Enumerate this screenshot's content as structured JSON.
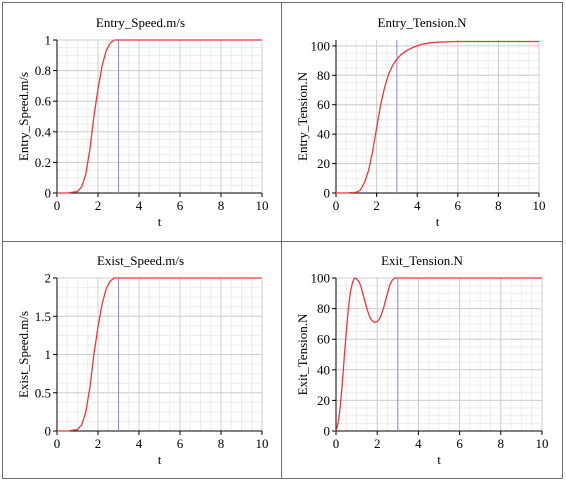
{
  "chart_data": [
    {
      "type": "line",
      "title": "Entry_Speed.m/s",
      "xlabel": "t",
      "ylabel": "Entry_Speed.m/s",
      "xlim": [
        0,
        10
      ],
      "ylim": [
        0,
        1
      ],
      "xticks": [
        0,
        2,
        4,
        6,
        8,
        10
      ],
      "yticks": [
        0,
        0.2,
        0.4,
        0.6,
        0.8,
        1
      ],
      "ytick_labels": [
        "0",
        "0.2",
        "0.4",
        "0.6",
        "0.8",
        "1"
      ],
      "grid": true,
      "marker_line_x": 3,
      "series": [
        {
          "color": "#e8383d",
          "x": [
            0,
            0.5,
            1,
            1.2,
            1.4,
            1.6,
            1.8,
            2.0,
            2.2,
            2.4,
            2.6,
            2.8,
            3.0,
            3.5,
            4,
            5,
            6,
            7,
            8,
            9,
            10
          ],
          "y": [
            0,
            0,
            0.01,
            0.04,
            0.12,
            0.28,
            0.5,
            0.68,
            0.83,
            0.93,
            0.98,
            1.0,
            1.0,
            1.0,
            1.0,
            1.0,
            1.0,
            1.0,
            1.0,
            1.0,
            1.0
          ]
        }
      ]
    },
    {
      "type": "line",
      "title": "Entry_Tension.N",
      "xlabel": "t",
      "ylabel": "Entry_Tension.N",
      "xlim": [
        0,
        10
      ],
      "ylim": [
        0,
        104
      ],
      "xticks": [
        0,
        2,
        4,
        6,
        8,
        10
      ],
      "yticks": [
        0,
        20,
        40,
        60,
        80,
        100
      ],
      "ytick_labels": [
        "0",
        "20",
        "40",
        "60",
        "80",
        "100"
      ],
      "grid": true,
      "marker_line_x": 3,
      "series": [
        {
          "color": "#e8383d",
          "x": [
            0,
            0.5,
            1,
            1.2,
            1.4,
            1.6,
            1.8,
            2.0,
            2.2,
            2.4,
            2.6,
            2.8,
            3.0,
            3.2,
            3.5,
            3.8,
            4.2,
            4.6,
            5,
            6,
            7,
            8,
            9,
            10
          ],
          "y": [
            0,
            0,
            0.5,
            2,
            7,
            15,
            28,
            44,
            60,
            72,
            81,
            87,
            91,
            94,
            97,
            99,
            101,
            102,
            102.5,
            103,
            103,
            103,
            103,
            103
          ]
        }
      ]
    },
    {
      "type": "line",
      "title": "Exist_Speed.m/s",
      "xlabel": "t",
      "ylabel": "Exist_Speed.m/s",
      "xlim": [
        0,
        10
      ],
      "ylim": [
        0,
        2
      ],
      "xticks": [
        0,
        2,
        4,
        6,
        8,
        10
      ],
      "yticks": [
        0,
        0.5,
        1,
        1.5,
        2
      ],
      "ytick_labels": [
        "0",
        "0.5",
        "1",
        "1.5",
        "2"
      ],
      "grid": true,
      "marker_line_x": 3,
      "series": [
        {
          "color": "#e8383d",
          "x": [
            0,
            0.5,
            1,
            1.2,
            1.4,
            1.6,
            1.8,
            2.0,
            2.2,
            2.4,
            2.6,
            2.8,
            3.0,
            3.5,
            4,
            5,
            6,
            7,
            8,
            9,
            10
          ],
          "y": [
            0,
            0,
            0.02,
            0.08,
            0.24,
            0.56,
            1.0,
            1.36,
            1.66,
            1.86,
            1.96,
            2.0,
            2.0,
            2.0,
            2.0,
            2.0,
            2.0,
            2.0,
            2.0,
            2.0,
            2.0
          ]
        }
      ]
    },
    {
      "type": "line",
      "title": "Exit_Tension.N",
      "xlabel": "t",
      "ylabel": "Exit_Tension.N",
      "xlim": [
        0,
        10
      ],
      "ylim": [
        0,
        100
      ],
      "xticks": [
        0,
        2,
        4,
        6,
        8,
        10
      ],
      "yticks": [
        0,
        20,
        40,
        60,
        80,
        100
      ],
      "ytick_labels": [
        "0",
        "20",
        "40",
        "60",
        "80",
        "100"
      ],
      "grid": true,
      "marker_line_x": 3,
      "series": [
        {
          "color": "#e8383d",
          "x": [
            0,
            0.1,
            0.2,
            0.3,
            0.4,
            0.5,
            0.6,
            0.7,
            0.8,
            0.9,
            1.0,
            1.1,
            1.2,
            1.3,
            1.4,
            1.5,
            1.6,
            1.7,
            1.8,
            1.9,
            2.0,
            2.1,
            2.2,
            2.3,
            2.4,
            2.5,
            2.6,
            2.7,
            2.8,
            2.9,
            3.0,
            3.3,
            3.6,
            4.0,
            5,
            6,
            7,
            8,
            9,
            10
          ],
          "y": [
            0,
            5,
            15,
            30,
            48,
            65,
            80,
            91,
            97,
            100,
            99.5,
            98,
            95,
            90,
            85,
            80,
            76,
            73,
            71.5,
            71,
            71.5,
            73,
            76,
            80,
            85,
            90,
            95,
            98,
            99.5,
            100,
            100,
            100,
            100,
            100,
            100,
            100,
            100,
            100,
            100,
            100
          ]
        }
      ]
    }
  ]
}
